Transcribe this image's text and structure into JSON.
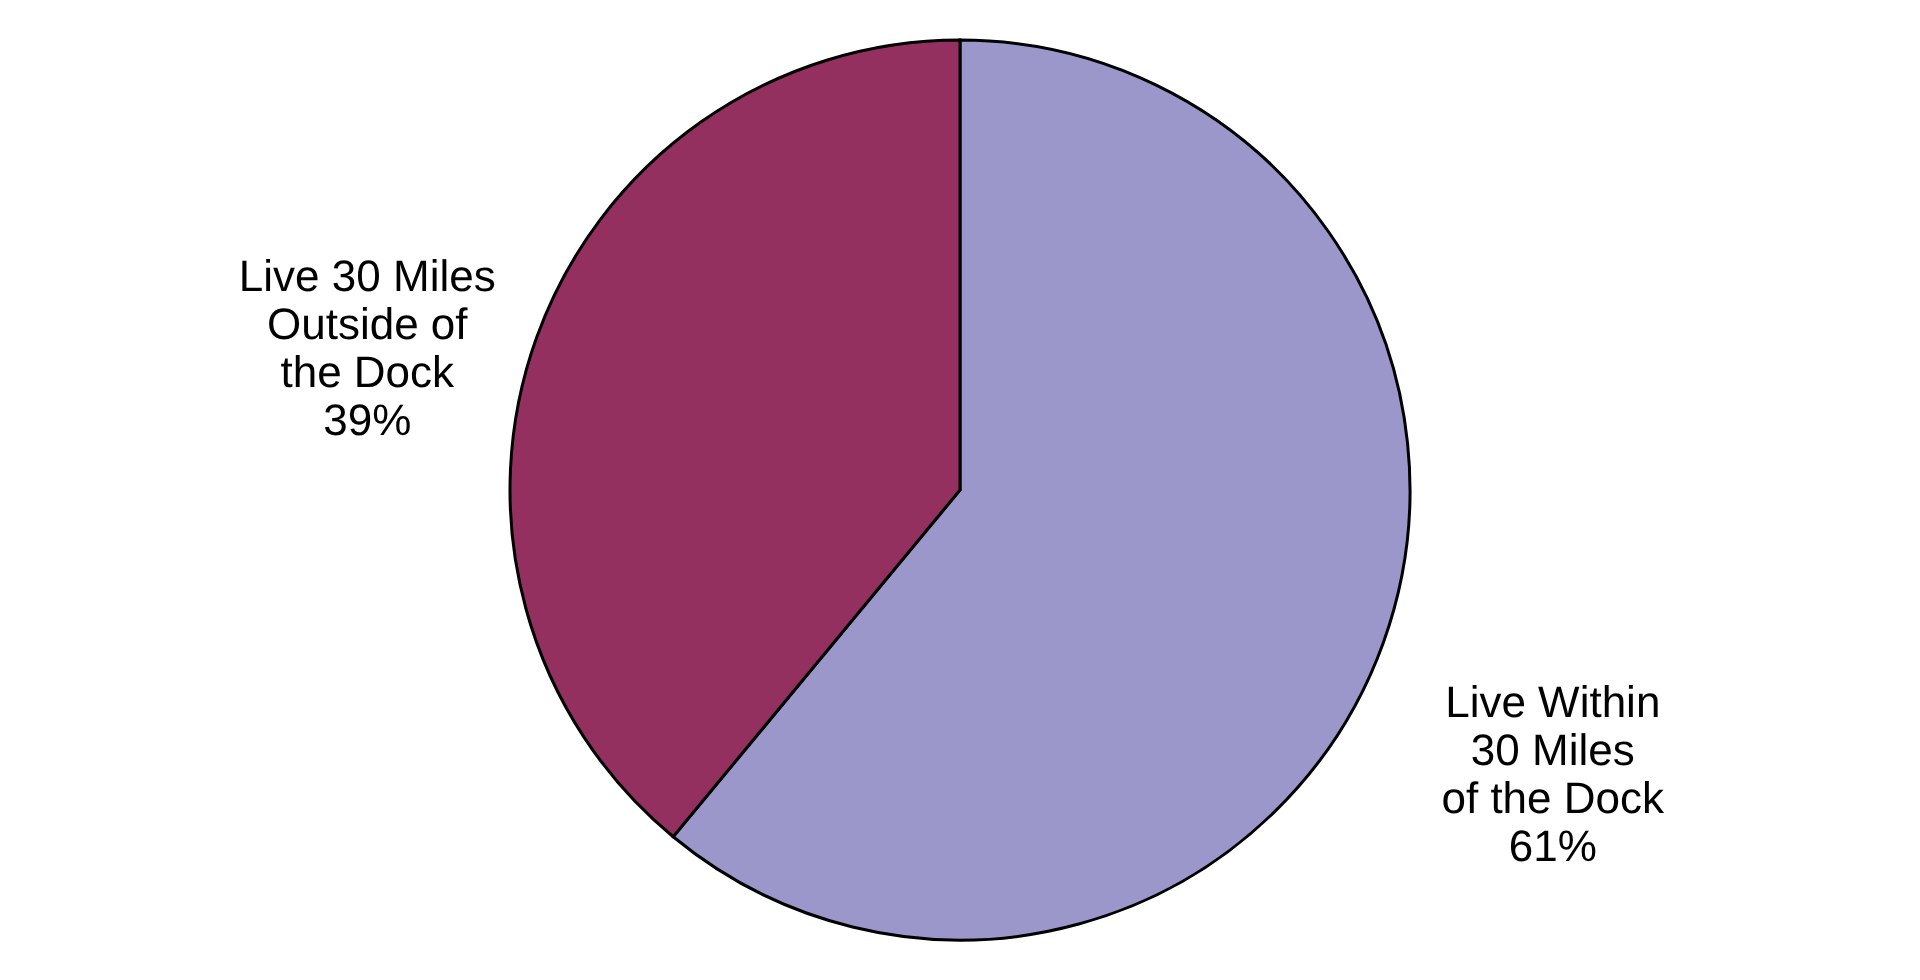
{
  "chart_data": {
    "type": "pie",
    "categories": [
      "Live Within\n30 Miles\nof the Dock",
      "Live 30 Miles\nOutside of\nthe Dock"
    ],
    "values": [
      61,
      39
    ],
    "value_labels": [
      "61%",
      "39%"
    ],
    "colors": [
      "#9b97cb",
      "#93305f"
    ],
    "legend": false
  }
}
